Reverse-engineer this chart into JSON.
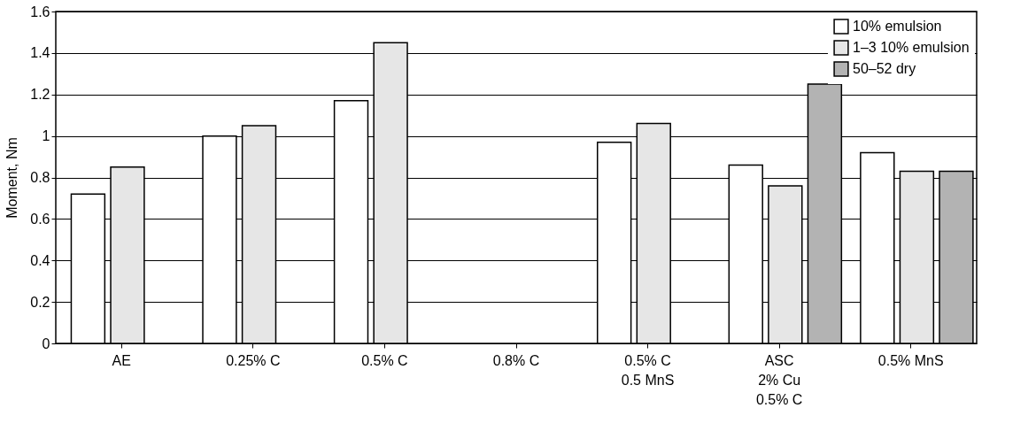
{
  "chart_data": {
    "type": "bar",
    "ylabel": "Moment, Nm",
    "categories": [
      "AE",
      "0.25% C",
      "0.5% C",
      "0.8% C",
      "0.5% C\n0.5 MnS",
      "ASC\n2% Cu\n0.5% C",
      "0.5% MnS"
    ],
    "series": [
      {
        "name": "10% emulsion",
        "color": "#ffffff",
        "values": [
          0.72,
          1.0,
          1.17,
          null,
          0.97,
          0.86,
          0.92
        ]
      },
      {
        "name": "1–3 10% emulsion",
        "color": "#e6e6e6",
        "values": [
          0.85,
          1.05,
          1.45,
          null,
          1.06,
          0.76,
          0.83
        ]
      },
      {
        "name": "50–52 dry",
        "color": "#b3b3b3",
        "values": [
          null,
          null,
          null,
          null,
          null,
          1.25,
          0.83
        ]
      }
    ],
    "ylim": [
      0,
      1.6
    ],
    "yticks": [
      0,
      0.2,
      0.4,
      0.6,
      0.8,
      1,
      1.2,
      1.4,
      1.6
    ],
    "grid": "y",
    "legend": "top right"
  }
}
